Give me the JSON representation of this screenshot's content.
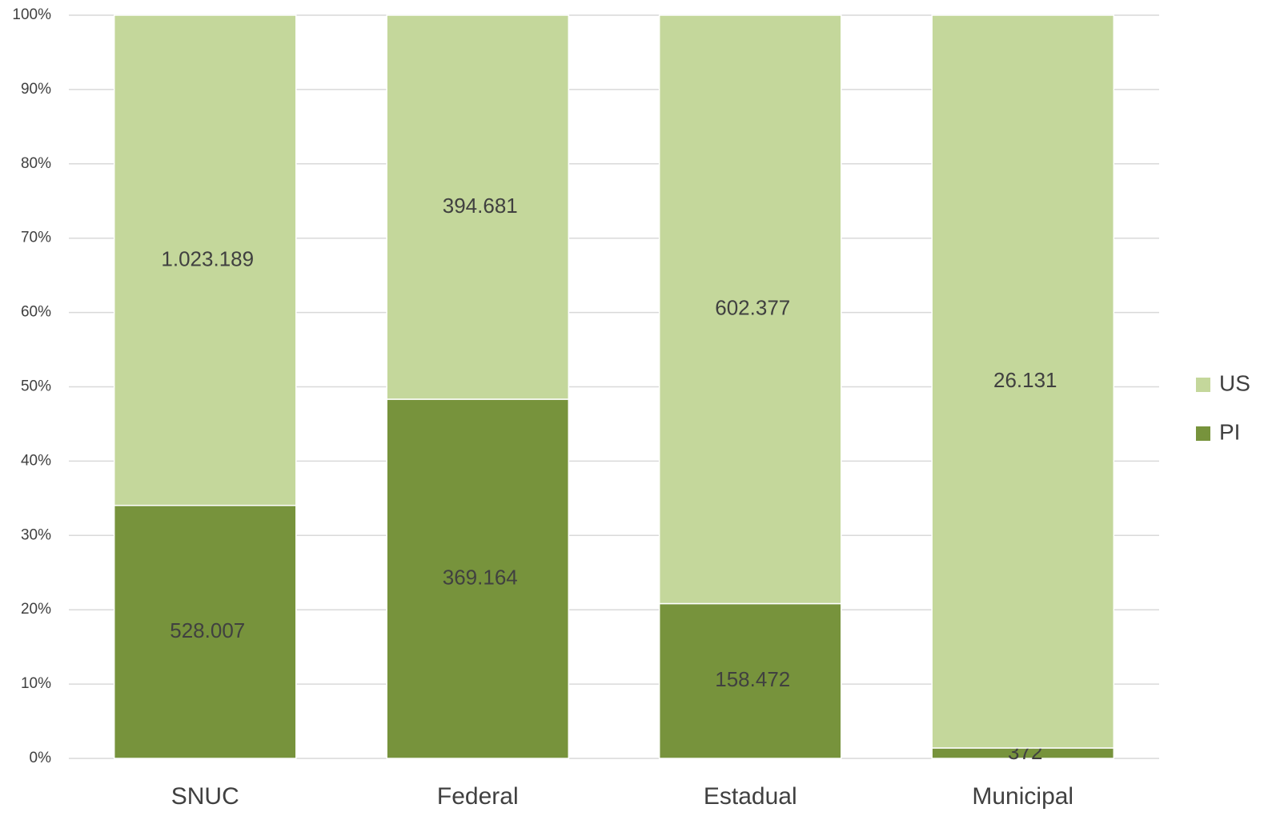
{
  "chart_data": {
    "type": "bar",
    "stack": "percent",
    "categories": [
      "SNUC",
      "Federal",
      "Estadual",
      "Municipal"
    ],
    "series": [
      {
        "name": "PI",
        "color": "#77933c",
        "values": [
          528007,
          369164,
          158472,
          372
        ],
        "value_labels": [
          "528.007",
          "369.164",
          "158.472",
          "372"
        ]
      },
      {
        "name": "US",
        "color": "#c4d79b",
        "values": [
          1023189,
          394681,
          602377,
          26131
        ],
        "value_labels": [
          "1.023.189",
          "394.681",
          "602.377",
          "26.131"
        ]
      }
    ],
    "ylim": [
      0,
      100
    ],
    "yticks": [
      {
        "value": 0,
        "label": "0%"
      },
      {
        "value": 10,
        "label": "10%"
      },
      {
        "value": 20,
        "label": "20%"
      },
      {
        "value": 30,
        "label": "30%"
      },
      {
        "value": 40,
        "label": "40%"
      },
      {
        "value": 50,
        "label": "50%"
      },
      {
        "value": 60,
        "label": "60%"
      },
      {
        "value": 70,
        "label": "70%"
      },
      {
        "value": 80,
        "label": "80%"
      },
      {
        "value": 90,
        "label": "90%"
      },
      {
        "value": 100,
        "label": "100%"
      }
    ],
    "grid": true,
    "legend": "right"
  }
}
